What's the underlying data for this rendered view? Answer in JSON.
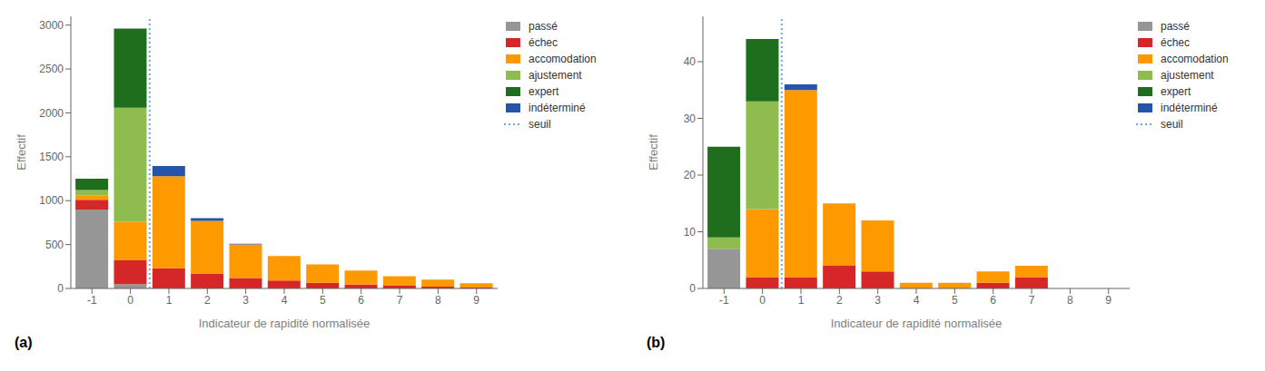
{
  "chart_data": [
    {
      "type": "bar",
      "stacked": true,
      "x": [
        -1,
        0,
        1,
        2,
        3,
        4,
        5,
        6,
        7,
        8,
        9
      ],
      "series": [
        {
          "name": "passé",
          "color": "#969696",
          "values": [
            900,
            50,
            0,
            0,
            0,
            0,
            0,
            0,
            0,
            0,
            0
          ]
        },
        {
          "name": "échec",
          "color": "#d62728",
          "values": [
            110,
            270,
            230,
            170,
            120,
            90,
            65,
            45,
            30,
            20,
            10
          ]
        },
        {
          "name": "accomodation",
          "color": "#ff9900",
          "values": [
            50,
            440,
            1050,
            600,
            380,
            280,
            210,
            160,
            110,
            80,
            50
          ]
        },
        {
          "name": "ajustement",
          "color": "#8fbc4e",
          "values": [
            60,
            1300,
            0,
            0,
            0,
            0,
            0,
            0,
            0,
            0,
            0
          ]
        },
        {
          "name": "expert",
          "color": "#1e6e1e",
          "values": [
            130,
            900,
            0,
            0,
            0,
            0,
            0,
            0,
            0,
            0,
            0
          ]
        },
        {
          "name": "indéterminé",
          "color": "#2554a8",
          "values": [
            0,
            0,
            115,
            30,
            10,
            0,
            0,
            0,
            0,
            0,
            0
          ]
        },
        {
          "name": "seuil",
          "type": "vline",
          "color": "#6aaad4",
          "line_style": "dotted",
          "x": 0.5
        }
      ],
      "xlim": [
        -1.55,
        9.55
      ],
      "xticks": [
        -1,
        0,
        1,
        2,
        3,
        4,
        5,
        6,
        7,
        8,
        9
      ],
      "ylim": [
        0,
        3100
      ],
      "yticks": [
        0,
        500,
        1000,
        1500,
        2000,
        2500,
        3000
      ],
      "xlabel": "Indicateur de rapidité normalisée",
      "ylabel": "Effectif",
      "annotations": [
        "(a)"
      ],
      "legend": "upper right",
      "grid": false
    },
    {
      "type": "bar",
      "stacked": true,
      "x": [
        -1,
        0,
        1,
        2,
        3,
        4,
        5,
        6,
        7,
        8,
        9
      ],
      "series": [
        {
          "name": "passé",
          "color": "#969696",
          "values": [
            7,
            0,
            0,
            0,
            0,
            0,
            0,
            0,
            0,
            0,
            0
          ]
        },
        {
          "name": "échec",
          "color": "#d62728",
          "values": [
            0,
            2,
            2,
            4,
            3,
            0,
            0,
            1,
            2,
            0,
            0
          ]
        },
        {
          "name": "accomodation",
          "color": "#ff9900",
          "values": [
            0,
            12,
            33,
            11,
            9,
            1,
            1,
            2,
            2,
            0,
            0
          ]
        },
        {
          "name": "ajustement",
          "color": "#8fbc4e",
          "values": [
            2,
            19,
            0,
            0,
            0,
            0,
            0,
            0,
            0,
            0,
            0
          ]
        },
        {
          "name": "expert",
          "color": "#1e6e1e",
          "values": [
            16,
            11,
            0,
            0,
            0,
            0,
            0,
            0,
            0,
            0,
            0
          ]
        },
        {
          "name": "indéterminé",
          "color": "#2554a8",
          "values": [
            0,
            0,
            1,
            0,
            0,
            0,
            0,
            0,
            0,
            0,
            0
          ]
        },
        {
          "name": "seuil",
          "type": "vline",
          "color": "#6aaad4",
          "line_style": "dotted",
          "x": 0.5
        }
      ],
      "xlim": [
        -1.55,
        9.55
      ],
      "xticks": [
        -1,
        0,
        1,
        2,
        3,
        4,
        5,
        6,
        7,
        8,
        9
      ],
      "ylim": [
        0,
        48
      ],
      "yticks": [
        0,
        10,
        20,
        30,
        40
      ],
      "xlabel": "Indicateur de rapidité normalisée",
      "ylabel": "Effectif",
      "annotations": [
        "(b)"
      ],
      "legend": "upper right",
      "grid": false
    }
  ]
}
